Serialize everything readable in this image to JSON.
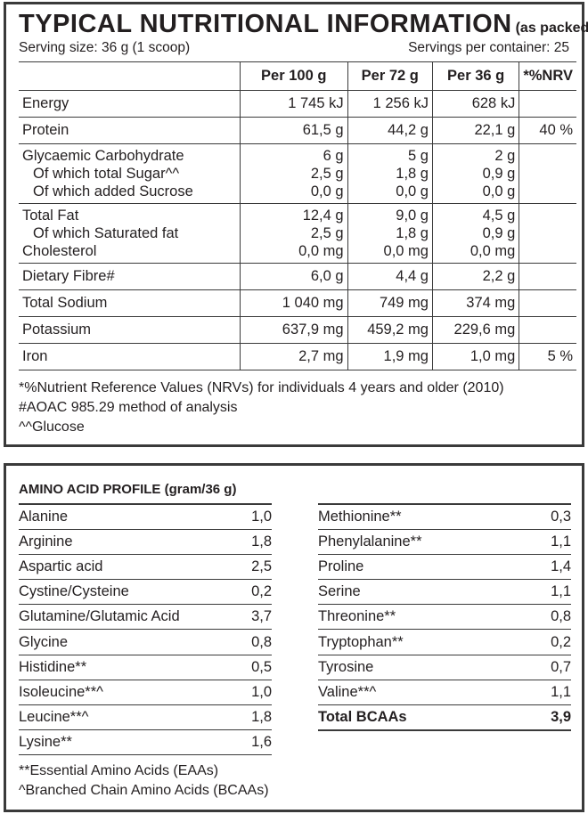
{
  "nutrition": {
    "title": "TYPICAL NUTRITIONAL INFORMATION",
    "title_note": "(as packed)",
    "serving_size": "Serving size: 36 g (1 scoop)",
    "servings_per_container": "Servings per container: 25",
    "headers": [
      "",
      "Per 100 g",
      "Per 72 g",
      "Per 36 g",
      "*%NRV"
    ],
    "rows": {
      "energy": [
        "Energy",
        "1 745 kJ",
        "1 256 kJ",
        "628 kJ",
        ""
      ],
      "protein": [
        "Protein",
        "61,5 g",
        "44,2 g",
        "22,1 g",
        "40 %"
      ],
      "carb": [
        "Glycaemic Carbohydrate",
        "6 g",
        "5 g",
        "2 g",
        ""
      ],
      "sugar": [
        "Of which total Sugar^^",
        "2,5 g",
        "1,8 g",
        "0,9 g",
        ""
      ],
      "sucrose": [
        "Of which added Sucrose",
        "0,0 g",
        "0,0 g",
        "0,0 g",
        ""
      ],
      "fat": [
        "Total Fat",
        "12,4 g",
        "9,0 g",
        "4,5 g",
        ""
      ],
      "satfat": [
        "Of which Saturated fat",
        "2,5 g",
        "1,8 g",
        "0,9 g",
        ""
      ],
      "chol": [
        "Cholesterol",
        "0,0 mg",
        "0,0 mg",
        "0,0 mg",
        ""
      ],
      "fibre": [
        "Dietary Fibre#",
        "6,0 g",
        "4,4 g",
        "2,2 g",
        ""
      ],
      "sodium": [
        "Total Sodium",
        "1 040 mg",
        "749 mg",
        "374 mg",
        ""
      ],
      "potassium": [
        "Potassium",
        "637,9 mg",
        "459,2 mg",
        "229,6 mg",
        ""
      ],
      "iron": [
        "Iron",
        "2,7 mg",
        "1,9 mg",
        "1,0 mg",
        "5 %"
      ]
    },
    "footnotes": [
      "*%Nutrient Reference Values (NRVs) for individuals 4 years and older (2010)",
      "#AOAC 985.29 method of analysis",
      "^^Glucose"
    ]
  },
  "amino": {
    "title": "AMINO ACID PROFILE (gram/36 g)",
    "left": [
      [
        "Alanine",
        "1,0"
      ],
      [
        "Arginine",
        "1,8"
      ],
      [
        "Aspartic acid",
        "2,5"
      ],
      [
        "Cystine/Cysteine",
        "0,2"
      ],
      [
        "Glutamine/Glutamic Acid",
        "3,7"
      ],
      [
        "Glycine",
        "0,8"
      ],
      [
        "Histidine**",
        "0,5"
      ],
      [
        "Isoleucine**^",
        "1,0"
      ],
      [
        "Leucine**^",
        "1,8"
      ],
      [
        "Lysine**",
        "1,6"
      ]
    ],
    "right": [
      [
        "Methionine**",
        "0,3"
      ],
      [
        "Phenylalanine**",
        "1,1"
      ],
      [
        "Proline",
        "1,4"
      ],
      [
        "Serine",
        "1,1"
      ],
      [
        "Threonine**",
        "0,8"
      ],
      [
        "Tryptophan**",
        "0,2"
      ],
      [
        "Tyrosine",
        "0,7"
      ],
      [
        "Valine**^",
        "1,1"
      ]
    ],
    "total": [
      "Total BCAAs",
      "3,9"
    ],
    "footnotes": [
      "**Essential Amino Acids (EAAs)",
      "^Branched Chain Amino Acids (BCAAs)"
    ]
  }
}
